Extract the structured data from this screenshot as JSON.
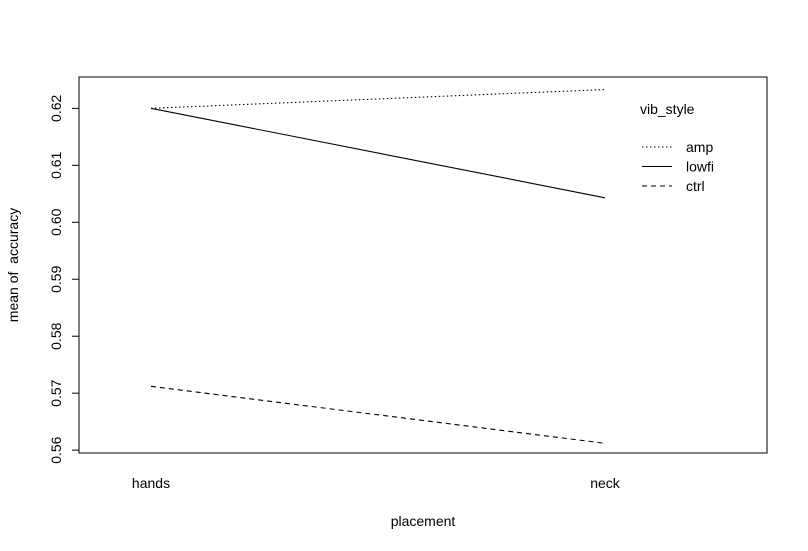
{
  "chart_data": {
    "type": "line",
    "title": "",
    "xlabel": "placement",
    "ylabel": "mean of  accuracy",
    "categories": [
      "hands",
      "neck"
    ],
    "ylim": [
      0.5595,
      0.6255
    ],
    "yticks": [
      0.56,
      0.57,
      0.58,
      0.59,
      0.6,
      0.61,
      0.62
    ],
    "ytick_labels": [
      "0.56",
      "0.57",
      "0.58",
      "0.59",
      "0.60",
      "0.61",
      "0.62"
    ],
    "grid": false,
    "legend": {
      "title": "vib_style",
      "position": "top-right",
      "frame": false
    },
    "series": [
      {
        "name": "amp",
        "line_style": "dotted",
        "color": "#000000",
        "values": [
          0.62,
          0.6233
        ]
      },
      {
        "name": "lowfi",
        "line_style": "solid",
        "color": "#000000",
        "values": [
          0.62,
          0.6043
        ]
      },
      {
        "name": "ctrl",
        "line_style": "dashed",
        "color": "#000000",
        "values": [
          0.5712,
          0.5612
        ]
      }
    ]
  }
}
